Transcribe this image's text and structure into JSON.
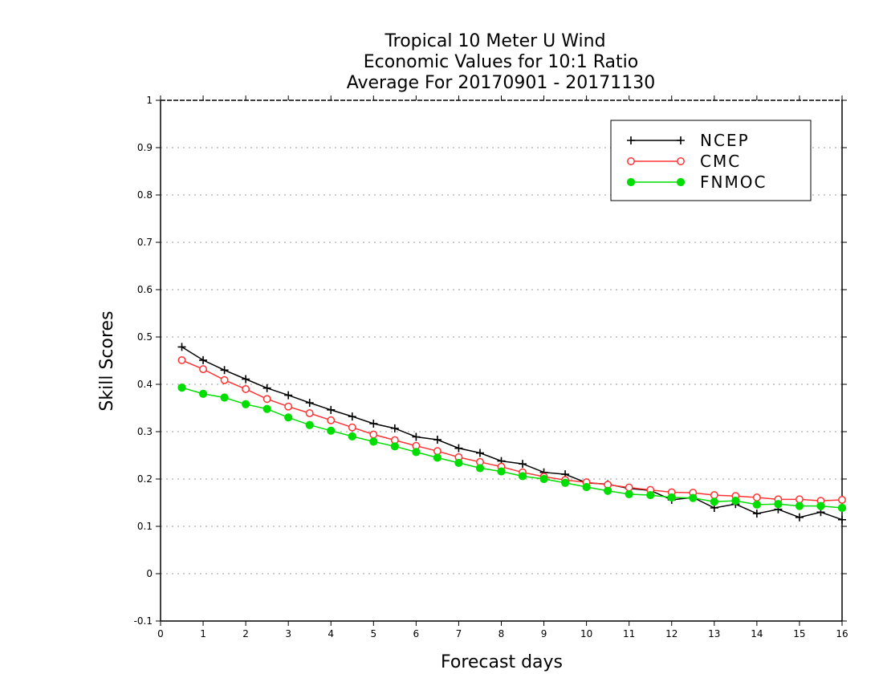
{
  "chart_data": {
    "type": "line",
    "title": [
      "Tropical 10 Meter U Wind",
      "Economic Values for 10:1 Ratio",
      "Average For 20170901 - 20171130"
    ],
    "xlabel": "Forecast days",
    "ylabel": "Skill Scores",
    "xlim": [
      0,
      16
    ],
    "ylim": [
      -0.1,
      1
    ],
    "xticks": [
      0,
      1,
      2,
      3,
      4,
      5,
      6,
      7,
      8,
      9,
      10,
      11,
      12,
      13,
      14,
      15,
      16
    ],
    "yticks": [
      -0.1,
      0,
      0.1,
      0.2,
      0.3,
      0.4,
      0.5,
      0.6,
      0.7,
      0.8,
      0.9,
      1
    ],
    "ytick_labels": [
      "-0.1",
      "0",
      "0.1",
      "0.2",
      "0.3",
      "0.4",
      "0.5",
      "0.6",
      "0.7",
      "0.8",
      "0.9",
      "1"
    ],
    "grid": "horizontal dotted",
    "legend_position": "top-right",
    "x": [
      0.5,
      1,
      1.5,
      2,
      2.5,
      3,
      3.5,
      4,
      4.5,
      5,
      5.5,
      6,
      6.5,
      7,
      7.5,
      8,
      8.5,
      9,
      9.5,
      10,
      10.5,
      11,
      11.5,
      12,
      12.5,
      13,
      13.5,
      14,
      14.5,
      15,
      15.5,
      16
    ],
    "series": [
      {
        "name": "NCEP",
        "color": "#000000",
        "marker": "plus",
        "values": [
          0.479,
          0.451,
          0.43,
          0.411,
          0.392,
          0.377,
          0.361,
          0.346,
          0.332,
          0.317,
          0.307,
          0.289,
          0.283,
          0.265,
          0.255,
          0.238,
          0.232,
          0.214,
          0.21,
          0.192,
          0.189,
          0.18,
          0.176,
          0.156,
          0.161,
          0.139,
          0.147,
          0.127,
          0.136,
          0.119,
          0.13,
          0.114
        ]
      },
      {
        "name": "CMC",
        "color": "#ff3333",
        "marker": "open-circle",
        "values": [
          0.451,
          0.432,
          0.409,
          0.39,
          0.369,
          0.353,
          0.339,
          0.324,
          0.309,
          0.294,
          0.282,
          0.27,
          0.259,
          0.246,
          0.236,
          0.226,
          0.214,
          0.205,
          0.198,
          0.193,
          0.188,
          0.182,
          0.177,
          0.172,
          0.171,
          0.166,
          0.164,
          0.161,
          0.157,
          0.157,
          0.154,
          0.156
        ]
      },
      {
        "name": "FNMOC",
        "color": "#00dd00",
        "marker": "filled-circle",
        "values": [
          0.393,
          0.38,
          0.372,
          0.358,
          0.348,
          0.33,
          0.314,
          0.302,
          0.29,
          0.279,
          0.269,
          0.257,
          0.245,
          0.234,
          0.223,
          0.216,
          0.206,
          0.2,
          0.192,
          0.183,
          0.175,
          0.168,
          0.166,
          0.161,
          0.16,
          0.152,
          0.154,
          0.146,
          0.147,
          0.143,
          0.143,
          0.139
        ]
      }
    ]
  }
}
